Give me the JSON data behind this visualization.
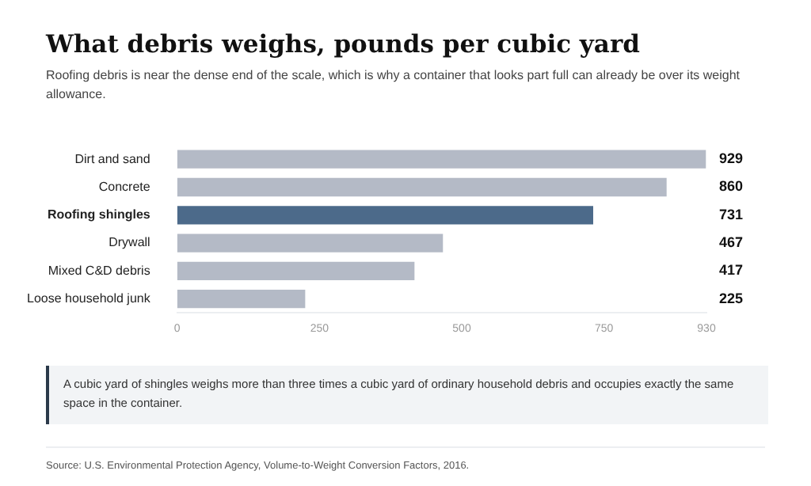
{
  "chart_data": {
    "type": "bar",
    "orientation": "horizontal",
    "title": "What debris weighs, pounds per cubic yard",
    "subtitle": "Roofing debris is near the dense end of the scale, which is why a container that looks part full can already be over its weight allowance.",
    "categories": [
      "Dirt and sand",
      "Concrete",
      "Roofing shingles",
      "Drywall",
      "Mixed C&D debris",
      "Loose household junk"
    ],
    "values": [
      929,
      860,
      731,
      467,
      417,
      225
    ],
    "colors": [
      "#b4bac6",
      "#b4bac6",
      "#4c6a8a",
      "#b4bac6",
      "#b4bac6",
      "#b4bac6"
    ],
    "data_labels": true,
    "xlim": [
      0,
      930
    ],
    "xticks": [
      0,
      250,
      500,
      750,
      930
    ],
    "grid": false,
    "legend": false,
    "annotations": [
      "A cubic yard of shingles weighs more than three times a cubic yard of ordinary household debris and occupies exactly the same space in the container.",
      "Source: U.S. Environmental Protection Agency, Volume-to-Weight Conversion Factors, 2016."
    ]
  }
}
